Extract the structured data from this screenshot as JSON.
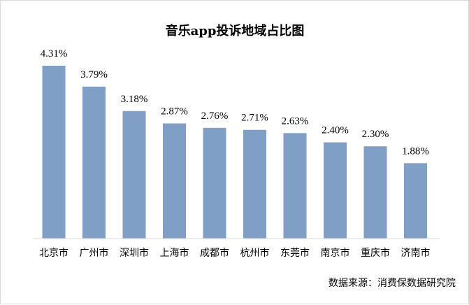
{
  "chart_data": {
    "type": "bar",
    "title": "音乐app投诉地域占比图",
    "categories": [
      "北京市",
      "广州市",
      "深圳市",
      "上海市",
      "成都市",
      "杭州市",
      "东莞市",
      "南京市",
      "重庆市",
      "济南市"
    ],
    "values": [
      4.31,
      3.79,
      3.18,
      2.87,
      2.76,
      2.71,
      2.63,
      2.4,
      2.3,
      1.88
    ],
    "value_labels": [
      "4.31%",
      "3.79%",
      "3.18%",
      "2.87%",
      "2.76%",
      "2.71%",
      "2.63%",
      "2.40%",
      "2.30%",
      "1.88%"
    ],
    "xlabel": "",
    "ylabel": "",
    "ylim": [
      0,
      4.31
    ],
    "grid": false,
    "bar_color": "#7f9fc6"
  },
  "source_note": "数据来源：消费保数据研究院"
}
